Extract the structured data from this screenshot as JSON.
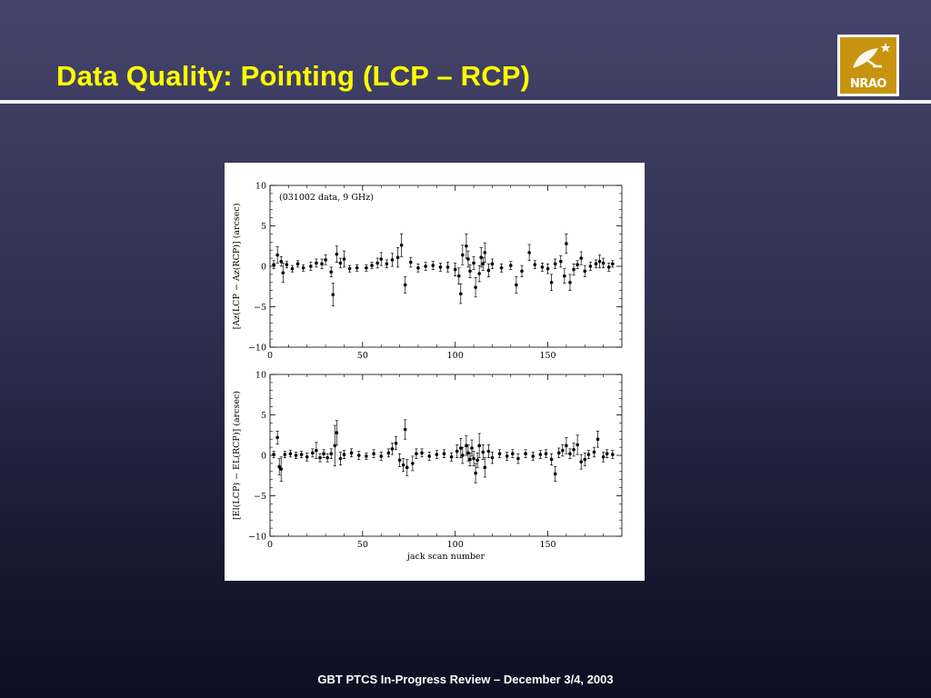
{
  "slide": {
    "title": "Data Quality:  Pointing (LCP – RCP)",
    "footer": "GBT PTCS In-Progress  Review – December 3/4, 2003",
    "logo_text": "NRAO",
    "colors": {
      "title": "#ffff00",
      "background_top": "#45456b",
      "background_bottom": "#0f0f22",
      "logo_gold": "#c8940f"
    }
  },
  "chart_data": [
    {
      "type": "scatter",
      "error_bars": true,
      "annotation": "(031002 data, 9 GHz)",
      "xlabel": "",
      "ylabel": "[Az(LCP − Az(RCP)] (arcsec)",
      "xlim": [
        0,
        190
      ],
      "ylim": [
        -10,
        10
      ],
      "x_ticks": [
        0,
        50,
        100,
        150
      ],
      "y_ticks": [
        10,
        5,
        0,
        -5,
        -10
      ],
      "series": [
        {
          "points": [
            {
              "x": 2,
              "y": 0.2,
              "err": 0.5
            },
            {
              "x": 4,
              "y": 1.4,
              "err": 1.0
            },
            {
              "x": 6,
              "y": 0.6,
              "err": 0.6
            },
            {
              "x": 7,
              "y": -0.8,
              "err": 1.2
            },
            {
              "x": 9,
              "y": 0.2,
              "err": 0.4
            },
            {
              "x": 12,
              "y": -0.3,
              "err": 0.4
            },
            {
              "x": 15,
              "y": 0.3,
              "err": 0.4
            },
            {
              "x": 18,
              "y": -0.2,
              "err": 0.4
            },
            {
              "x": 22,
              "y": 0.0,
              "err": 0.5
            },
            {
              "x": 25,
              "y": 0.4,
              "err": 0.5
            },
            {
              "x": 28,
              "y": 0.3,
              "err": 0.6
            },
            {
              "x": 30,
              "y": 0.8,
              "err": 0.6
            },
            {
              "x": 33,
              "y": -0.7,
              "err": 0.6
            },
            {
              "x": 34,
              "y": -3.5,
              "err": 1.4
            },
            {
              "x": 36,
              "y": 1.5,
              "err": 1.0
            },
            {
              "x": 38,
              "y": 0.4,
              "err": 0.6
            },
            {
              "x": 40,
              "y": 0.9,
              "err": 1.0
            },
            {
              "x": 43,
              "y": -0.3,
              "err": 0.4
            },
            {
              "x": 47,
              "y": -0.2,
              "err": 0.4
            },
            {
              "x": 52,
              "y": -0.2,
              "err": 0.4
            },
            {
              "x": 55,
              "y": 0.1,
              "err": 0.4
            },
            {
              "x": 58,
              "y": 0.4,
              "err": 0.6
            },
            {
              "x": 60,
              "y": 0.9,
              "err": 0.8
            },
            {
              "x": 63,
              "y": 0.3,
              "err": 0.5
            },
            {
              "x": 66,
              "y": 0.8,
              "err": 0.8
            },
            {
              "x": 69,
              "y": 1.1,
              "err": 1.2
            },
            {
              "x": 71,
              "y": 2.6,
              "err": 1.4
            },
            {
              "x": 73,
              "y": -2.3,
              "err": 1.0
            },
            {
              "x": 76,
              "y": 0.5,
              "err": 0.6
            },
            {
              "x": 80,
              "y": -0.2,
              "err": 0.5
            },
            {
              "x": 84,
              "y": 0.0,
              "err": 0.5
            },
            {
              "x": 88,
              "y": 0.1,
              "err": 0.5
            },
            {
              "x": 92,
              "y": -0.1,
              "err": 0.5
            },
            {
              "x": 96,
              "y": -0.1,
              "err": 0.6
            },
            {
              "x": 100,
              "y": -0.4,
              "err": 0.8
            },
            {
              "x": 102,
              "y": -1.2,
              "err": 1.0
            },
            {
              "x": 103,
              "y": -3.4,
              "err": 1.2
            },
            {
              "x": 104,
              "y": 1.4,
              "err": 1.2
            },
            {
              "x": 106,
              "y": 2.5,
              "err": 1.5
            },
            {
              "x": 107,
              "y": 0.9,
              "err": 1.0
            },
            {
              "x": 108,
              "y": -0.6,
              "err": 0.8
            },
            {
              "x": 110,
              "y": 0.4,
              "err": 0.8
            },
            {
              "x": 111,
              "y": -2.6,
              "err": 1.2
            },
            {
              "x": 113,
              "y": -0.9,
              "err": 1.0
            },
            {
              "x": 114,
              "y": 1.1,
              "err": 1.2
            },
            {
              "x": 115,
              "y": 0.3,
              "err": 0.8
            },
            {
              "x": 116,
              "y": 1.7,
              "err": 1.2
            },
            {
              "x": 118,
              "y": -0.5,
              "err": 0.8
            },
            {
              "x": 120,
              "y": 0.3,
              "err": 0.6
            },
            {
              "x": 125,
              "y": -0.2,
              "err": 0.5
            },
            {
              "x": 130,
              "y": 0.1,
              "err": 0.5
            },
            {
              "x": 133,
              "y": -2.3,
              "err": 1.0
            },
            {
              "x": 136,
              "y": -0.6,
              "err": 0.7
            },
            {
              "x": 140,
              "y": 1.7,
              "err": 1.0
            },
            {
              "x": 143,
              "y": 0.2,
              "err": 0.5
            },
            {
              "x": 147,
              "y": -0.1,
              "err": 0.5
            },
            {
              "x": 150,
              "y": -0.3,
              "err": 0.6
            },
            {
              "x": 152,
              "y": -2.0,
              "err": 1.0
            },
            {
              "x": 154,
              "y": 0.3,
              "err": 0.6
            },
            {
              "x": 157,
              "y": 0.6,
              "err": 0.7
            },
            {
              "x": 159,
              "y": -1.2,
              "err": 0.9
            },
            {
              "x": 160,
              "y": 2.8,
              "err": 1.2
            },
            {
              "x": 162,
              "y": -2.0,
              "err": 1.0
            },
            {
              "x": 164,
              "y": -0.4,
              "err": 0.7
            },
            {
              "x": 166,
              "y": 0.2,
              "err": 0.5
            },
            {
              "x": 168,
              "y": 1.0,
              "err": 0.8
            },
            {
              "x": 170,
              "y": -0.6,
              "err": 0.7
            },
            {
              "x": 173,
              "y": 0.0,
              "err": 0.5
            },
            {
              "x": 176,
              "y": 0.3,
              "err": 0.5
            },
            {
              "x": 178,
              "y": 0.6,
              "err": 0.8
            },
            {
              "x": 180,
              "y": 0.4,
              "err": 0.6
            },
            {
              "x": 183,
              "y": -0.1,
              "err": 0.5
            },
            {
              "x": 185,
              "y": 0.3,
              "err": 0.4
            }
          ]
        }
      ]
    },
    {
      "type": "scatter",
      "error_bars": true,
      "annotation": "",
      "xlabel": "jack scan number",
      "ylabel": "[El(LCP) − EL(RCP)] (arcsec)",
      "xlim": [
        0,
        190
      ],
      "ylim": [
        -10,
        10
      ],
      "x_ticks": [
        0,
        50,
        100,
        150
      ],
      "y_ticks": [
        10,
        5,
        0,
        -5,
        -10
      ],
      "series": [
        {
          "points": [
            {
              "x": 2,
              "y": 0.1,
              "err": 0.4
            },
            {
              "x": 4,
              "y": 2.2,
              "err": 0.8
            },
            {
              "x": 5,
              "y": -1.4,
              "err": 1.0
            },
            {
              "x": 6,
              "y": -1.7,
              "err": 1.5
            },
            {
              "x": 8,
              "y": 0.1,
              "err": 0.4
            },
            {
              "x": 11,
              "y": 0.2,
              "err": 0.4
            },
            {
              "x": 14,
              "y": 0.0,
              "err": 0.4
            },
            {
              "x": 17,
              "y": 0.1,
              "err": 0.4
            },
            {
              "x": 20,
              "y": -0.2,
              "err": 0.5
            },
            {
              "x": 23,
              "y": 0.3,
              "err": 0.5
            },
            {
              "x": 25,
              "y": 0.6,
              "err": 1.0
            },
            {
              "x": 27,
              "y": -0.3,
              "err": 0.5
            },
            {
              "x": 29,
              "y": 0.2,
              "err": 0.5
            },
            {
              "x": 31,
              "y": -0.3,
              "err": 0.5
            },
            {
              "x": 33,
              "y": 0.2,
              "err": 0.6
            },
            {
              "x": 35,
              "y": 1.2,
              "err": 2.5
            },
            {
              "x": 36,
              "y": 2.8,
              "err": 1.5
            },
            {
              "x": 38,
              "y": -0.4,
              "err": 0.8
            },
            {
              "x": 40,
              "y": 0.1,
              "err": 0.5
            },
            {
              "x": 44,
              "y": 0.3,
              "err": 0.5
            },
            {
              "x": 48,
              "y": 0.0,
              "err": 0.5
            },
            {
              "x": 52,
              "y": -0.1,
              "err": 0.4
            },
            {
              "x": 56,
              "y": 0.2,
              "err": 0.5
            },
            {
              "x": 60,
              "y": -0.1,
              "err": 0.5
            },
            {
              "x": 64,
              "y": 0.3,
              "err": 0.5
            },
            {
              "x": 66,
              "y": 0.8,
              "err": 0.7
            },
            {
              "x": 68,
              "y": 1.5,
              "err": 0.8
            },
            {
              "x": 70,
              "y": -0.6,
              "err": 0.8
            },
            {
              "x": 72,
              "y": -1.2,
              "err": 0.8
            },
            {
              "x": 73,
              "y": 3.2,
              "err": 1.2
            },
            {
              "x": 74,
              "y": -1.5,
              "err": 1.0
            },
            {
              "x": 77,
              "y": -1.0,
              "err": 0.9
            },
            {
              "x": 79,
              "y": 0.2,
              "err": 0.6
            },
            {
              "x": 82,
              "y": 0.3,
              "err": 0.5
            },
            {
              "x": 86,
              "y": -0.1,
              "err": 0.5
            },
            {
              "x": 90,
              "y": 0.1,
              "err": 0.5
            },
            {
              "x": 94,
              "y": 0.2,
              "err": 0.5
            },
            {
              "x": 98,
              "y": -0.2,
              "err": 0.5
            },
            {
              "x": 101,
              "y": 0.5,
              "err": 0.8
            },
            {
              "x": 103,
              "y": 0.9,
              "err": 1.2
            },
            {
              "x": 104,
              "y": 0.0,
              "err": 1.0
            },
            {
              "x": 106,
              "y": 1.2,
              "err": 1.2
            },
            {
              "x": 107,
              "y": 0.3,
              "err": 1.0
            },
            {
              "x": 108,
              "y": -0.5,
              "err": 0.8
            },
            {
              "x": 109,
              "y": 0.9,
              "err": 1.0
            },
            {
              "x": 110,
              "y": -0.4,
              "err": 0.9
            },
            {
              "x": 111,
              "y": -2.2,
              "err": 1.2
            },
            {
              "x": 112,
              "y": -0.6,
              "err": 0.9
            },
            {
              "x": 113,
              "y": 1.2,
              "err": 1.5
            },
            {
              "x": 115,
              "y": 0.4,
              "err": 0.9
            },
            {
              "x": 116,
              "y": -1.5,
              "err": 1.2
            },
            {
              "x": 118,
              "y": 0.5,
              "err": 0.8
            },
            {
              "x": 120,
              "y": -0.3,
              "err": 0.7
            },
            {
              "x": 124,
              "y": 0.2,
              "err": 0.5
            },
            {
              "x": 128,
              "y": -0.1,
              "err": 0.5
            },
            {
              "x": 131,
              "y": 0.2,
              "err": 0.5
            },
            {
              "x": 134,
              "y": -0.4,
              "err": 0.6
            },
            {
              "x": 138,
              "y": 0.2,
              "err": 0.5
            },
            {
              "x": 142,
              "y": -0.1,
              "err": 0.5
            },
            {
              "x": 146,
              "y": 0.1,
              "err": 0.5
            },
            {
              "x": 149,
              "y": 0.2,
              "err": 0.5
            },
            {
              "x": 152,
              "y": -0.5,
              "err": 0.7
            },
            {
              "x": 154,
              "y": -2.3,
              "err": 0.9
            },
            {
              "x": 156,
              "y": 0.3,
              "err": 0.6
            },
            {
              "x": 158,
              "y": 0.6,
              "err": 0.7
            },
            {
              "x": 160,
              "y": 1.2,
              "err": 1.0
            },
            {
              "x": 162,
              "y": 0.2,
              "err": 0.6
            },
            {
              "x": 164,
              "y": 0.7,
              "err": 0.8
            },
            {
              "x": 166,
              "y": 1.3,
              "err": 1.2
            },
            {
              "x": 168,
              "y": -0.8,
              "err": 0.9
            },
            {
              "x": 170,
              "y": -0.5,
              "err": 0.8
            },
            {
              "x": 172,
              "y": 0.1,
              "err": 0.5
            },
            {
              "x": 175,
              "y": 0.4,
              "err": 0.6
            },
            {
              "x": 177,
              "y": 2.0,
              "err": 1.0
            },
            {
              "x": 180,
              "y": -0.2,
              "err": 0.6
            },
            {
              "x": 182,
              "y": 0.2,
              "err": 0.5
            },
            {
              "x": 185,
              "y": 0.1,
              "err": 0.5
            }
          ]
        }
      ]
    }
  ]
}
